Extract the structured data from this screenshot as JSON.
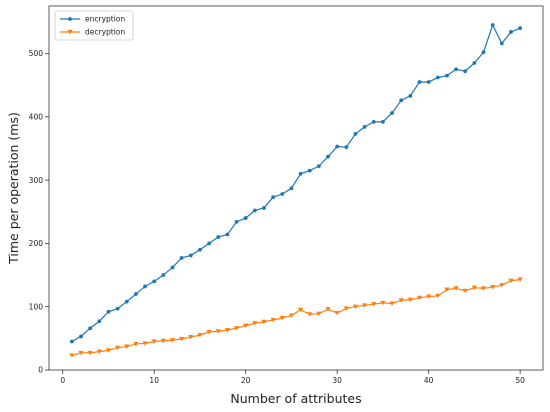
{
  "chart_data": {
    "type": "line",
    "title": "",
    "xlabel": "Number of attributes",
    "ylabel": "Time per operation (ms)",
    "xlim": [
      -1.5,
      52.5
    ],
    "ylim": [
      0,
      575
    ],
    "xticks": [
      0,
      10,
      20,
      30,
      40,
      50
    ],
    "yticks": [
      0,
      100,
      200,
      300,
      400,
      500
    ],
    "grid": false,
    "legend_position": "top-left",
    "x": [
      1,
      2,
      3,
      4,
      5,
      6,
      7,
      8,
      9,
      10,
      11,
      12,
      13,
      14,
      15,
      16,
      17,
      18,
      19,
      20,
      21,
      22,
      23,
      24,
      25,
      26,
      27,
      28,
      29,
      30,
      31,
      32,
      33,
      34,
      35,
      36,
      37,
      38,
      39,
      40,
      41,
      42,
      43,
      44,
      45,
      46,
      47,
      48,
      49,
      50
    ],
    "series": [
      {
        "name": "encryption",
        "color": "#1f77b4",
        "marker": "circle",
        "values": [
          45,
          53,
          66,
          77,
          92,
          97,
          108,
          120,
          132,
          140,
          150,
          162,
          177,
          181,
          190,
          200,
          210,
          214,
          234,
          240,
          252,
          256,
          273,
          278,
          287,
          310,
          315,
          322,
          337,
          353,
          352,
          373,
          384,
          392,
          392,
          406,
          426,
          433,
          455,
          455,
          462,
          465,
          475,
          472,
          485,
          502,
          545,
          516,
          534,
          540
        ]
      },
      {
        "name": "decryption",
        "color": "#ff7f0e",
        "marker": "triangle-down",
        "values": [
          23,
          27,
          27,
          29,
          31,
          35,
          37,
          41,
          42,
          45,
          46,
          47,
          49,
          52,
          55,
          60,
          61,
          63,
          66,
          70,
          74,
          76,
          79,
          82,
          86,
          95,
          88,
          89,
          96,
          90,
          97,
          100,
          102,
          104,
          106,
          105,
          110,
          111,
          114,
          116,
          117,
          127,
          129,
          125,
          130,
          129,
          131,
          134,
          141,
          143
        ]
      }
    ]
  }
}
